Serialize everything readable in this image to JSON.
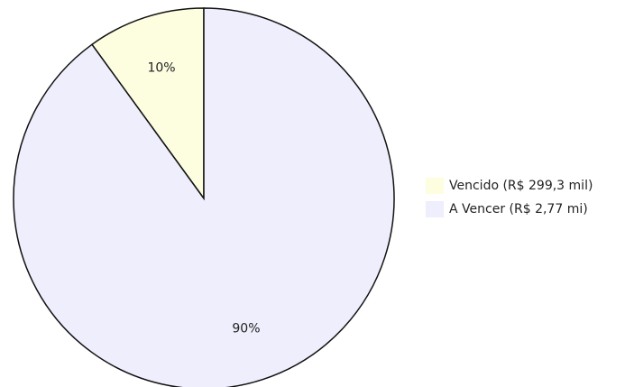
{
  "chart_data": {
    "type": "pie",
    "categories": [
      "Vencido (R$ 299,3 mil)",
      "A Vencer (R$ 2,77 mi)"
    ],
    "values": [
      10,
      90
    ],
    "value_labels": [
      "10%",
      "90%"
    ],
    "colors": [
      "#fdfde0",
      "#eeeefd"
    ],
    "legend": "right"
  }
}
